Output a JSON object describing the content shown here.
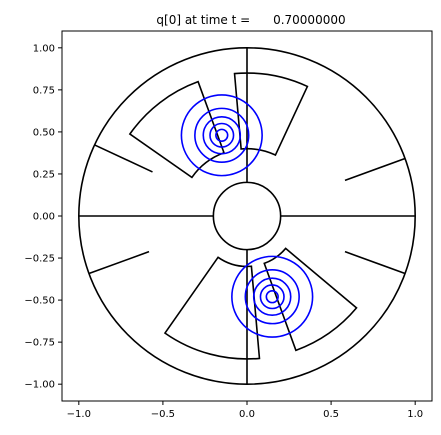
{
  "chart_data": {
    "type": "line",
    "title": "q[0] at time t =      0.70000000",
    "xlabel": "",
    "ylabel": "",
    "xlim": [
      -1.1,
      1.1
    ],
    "ylim": [
      -1.1,
      1.1
    ],
    "x_ticks": [
      -1.0,
      -0.5,
      0.0,
      0.5,
      1.0
    ],
    "x_tick_labels": [
      "−1.0",
      "−0.5",
      "0.0",
      "0.5",
      "1.0"
    ],
    "y_ticks": [
      1.0,
      0.75,
      0.5,
      0.25,
      0.0,
      -0.25,
      -0.5,
      -0.75,
      -1.0
    ],
    "y_tick_labels": [
      "1.00",
      "0.75",
      "0.50",
      "0.25",
      "0.00",
      "−0.25",
      "−0.50",
      "−0.75",
      "−1.00"
    ],
    "grid": false,
    "aspect": "equal",
    "grid_color": "#000000",
    "contour_color": "#0000ff",
    "outer_circle_radius": 1.0,
    "inner_circle_radius": 0.2,
    "full_spokes_deg": [
      0,
      90,
      180,
      270
    ],
    "partial_spokes_deg": [
      20,
      155,
      200,
      340
    ],
    "patches": [
      {
        "r_range": [
          0.4,
          0.85
        ],
        "theta_range_deg": [
          65,
          95
        ]
      },
      {
        "r_range": [
          0.4,
          0.85
        ],
        "theta_range_deg": [
          110,
          145
        ]
      },
      {
        "r_range": [
          0.3,
          0.85
        ],
        "theta_range_deg": [
          235,
          275
        ]
      },
      {
        "r_range": [
          0.3,
          0.85
        ],
        "theta_range_deg": [
          290,
          320
        ]
      }
    ],
    "contour_sets": [
      {
        "center": [
          -0.15,
          0.48
        ],
        "radii": [
          0.24,
          0.16,
          0.11,
          0.07,
          0.035
        ]
      },
      {
        "center": [
          0.15,
          -0.48
        ],
        "radii": [
          0.24,
          0.16,
          0.11,
          0.07,
          0.035
        ]
      }
    ]
  }
}
